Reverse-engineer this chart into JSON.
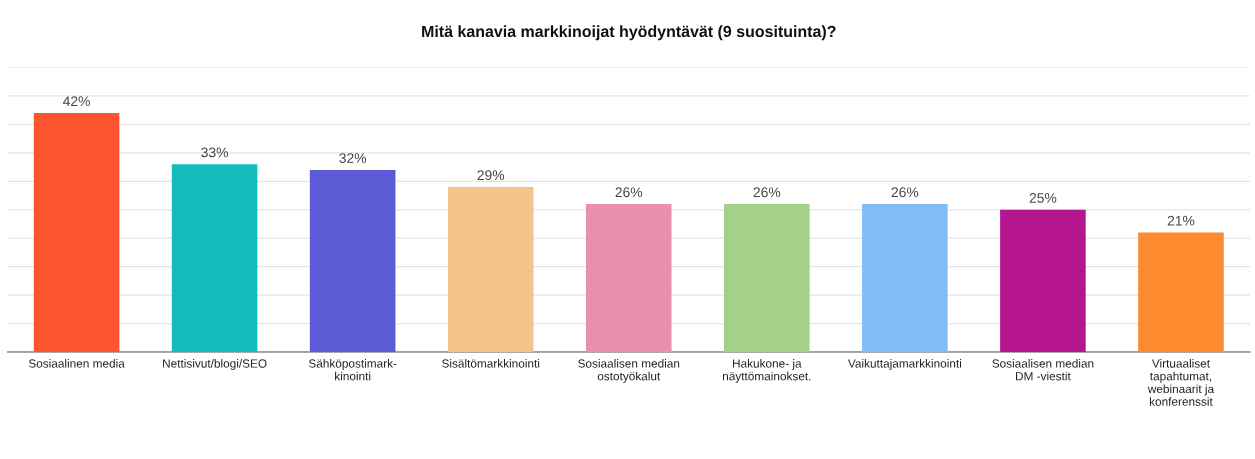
{
  "chart_data": {
    "type": "bar",
    "title": "Mitä kanavia markkinoijat hyödyntävät (9 suosituinta)?",
    "categories": [
      "Sosiaalinen media",
      "Nettisivut/blogi/SEO",
      "Sähköpostimark-\nkinointi",
      "Sisältömarkkinointi",
      "Sosiaalisen median\nostotyökalut",
      "Hakukone- ja\nnäyttömainokset.",
      "Vaikuttajamarkkinointi",
      "Sosiaalisen median\nDM -viestit",
      "Virtuaaliset\ntapahtumat,\nwebinaarit ja\nkonferenssit"
    ],
    "values": [
      42,
      33,
      32,
      29,
      26,
      26,
      26,
      25,
      21
    ],
    "colors": [
      "#fc5530",
      "#16bcbc",
      "#5b5bd6",
      "#f5c48a",
      "#e98fb0",
      "#a3d18a",
      "#80bdf7",
      "#b5168f",
      "#fd8a2e"
    ],
    "value_labels": [
      "42%",
      "33%",
      "32%",
      "29%",
      "26%",
      "26%",
      "26%",
      "25%",
      "21%"
    ],
    "ylim": [
      0,
      50
    ],
    "yticks": [
      {
        "value": 0,
        "label": null
      },
      {
        "value": 5,
        "label": null
      },
      {
        "value": 10,
        "label": null
      },
      {
        "value": 15,
        "label": null
      },
      {
        "value": 20,
        "label": null
      },
      {
        "value": 25,
        "label": null
      },
      {
        "value": 30,
        "label": null
      },
      {
        "value": 35,
        "label": null
      },
      {
        "value": 40,
        "label": null
      },
      {
        "value": 45,
        "label": null
      },
      {
        "value": 50,
        "label": null
      }
    ],
    "grid": "y",
    "tick_labels": "x"
  }
}
